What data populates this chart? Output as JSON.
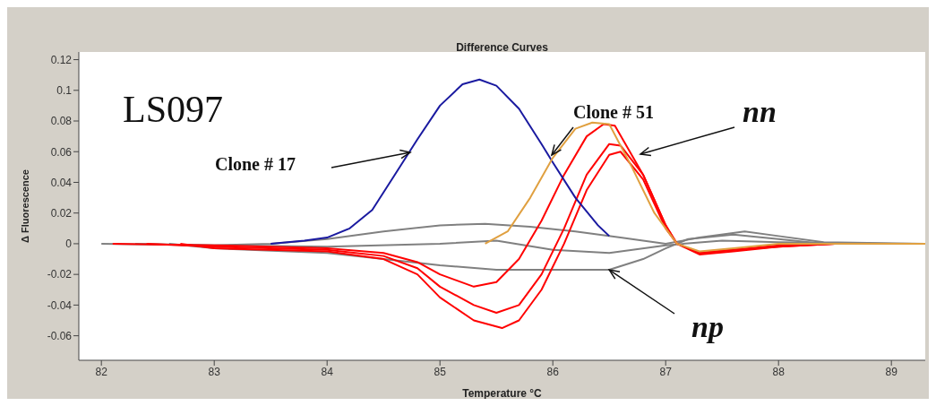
{
  "chart_data": {
    "type": "line",
    "title": "Difference Curves",
    "xlabel": "Temperature °C",
    "ylabel": "Δ Fluorescence",
    "xlim": [
      81.8,
      89.3
    ],
    "xticks": [
      82,
      83,
      84,
      85,
      86,
      87,
      88,
      89
    ],
    "ylim": [
      -0.076,
      0.125
    ],
    "yticks": [
      -0.06,
      -0.04,
      -0.02,
      0,
      0.02,
      0.04,
      0.06,
      0.08,
      0.1,
      0.12
    ],
    "grid": false,
    "legend": false,
    "marker": "none",
    "line_style": "solid",
    "series": [
      {
        "color": "#808080",
        "x": [
          82,
          83,
          83.5,
          84,
          84.5,
          85,
          85.4,
          85.8,
          86.2,
          86.6,
          87,
          87.3,
          87.7,
          88,
          88.4,
          89.3
        ],
        "values": [
          0,
          -0.001,
          0,
          0.003,
          0.008,
          0.012,
          0.013,
          0.011,
          0.008,
          0.004,
          0,
          0.004,
          0.008,
          0.005,
          0.001,
          0
        ]
      },
      {
        "color": "#808080",
        "x": [
          82.3,
          83,
          84,
          85,
          85.5,
          86,
          86.5,
          87,
          87.5,
          88,
          89
        ],
        "values": [
          0,
          -0.001,
          -0.002,
          0,
          0.002,
          -0.004,
          -0.006,
          -0.001,
          0.002,
          0.001,
          0
        ]
      },
      {
        "color": "#808080",
        "x": [
          82.6,
          83,
          84,
          84.5,
          85,
          85.5,
          86,
          86.5,
          86.8,
          87,
          87.2,
          87.6,
          88,
          88.4,
          88.7
        ],
        "values": [
          0,
          -0.003,
          -0.006,
          -0.01,
          -0.014,
          -0.017,
          -0.017,
          -0.017,
          -0.01,
          -0.003,
          0.003,
          0.006,
          0.003,
          0,
          0
        ]
      },
      {
        "color": "#ff0000",
        "x": [
          82.1,
          83,
          84,
          84.5,
          84.8,
          85,
          85.3,
          85.5,
          85.7,
          85.9,
          86.1,
          86.3,
          86.45,
          86.55,
          86.8,
          87,
          87.1,
          87.3,
          87.6,
          88,
          88.5,
          89.3
        ],
        "values": [
          0,
          -0.001,
          -0.003,
          -0.006,
          -0.012,
          -0.02,
          -0.028,
          -0.025,
          -0.01,
          0.015,
          0.045,
          0.07,
          0.078,
          0.077,
          0.045,
          0.012,
          0,
          -0.006,
          -0.004,
          -0.001,
          0,
          0
        ]
      },
      {
        "color": "#ff0000",
        "x": [
          82.4,
          83,
          84,
          84.5,
          84.8,
          85,
          85.3,
          85.5,
          85.7,
          85.9,
          86.1,
          86.3,
          86.5,
          86.6,
          86.8,
          87,
          87.1,
          87.3,
          87.6,
          88,
          88.5,
          89.3
        ],
        "values": [
          0,
          -0.002,
          -0.004,
          -0.008,
          -0.016,
          -0.028,
          -0.04,
          -0.045,
          -0.04,
          -0.02,
          0.01,
          0.045,
          0.065,
          0.064,
          0.045,
          0.012,
          0,
          -0.007,
          -0.005,
          -0.002,
          0,
          0
        ]
      },
      {
        "color": "#ff0000",
        "x": [
          82.7,
          83,
          84,
          84.5,
          84.8,
          85,
          85.3,
          85.55,
          85.7,
          85.9,
          86.1,
          86.3,
          86.5,
          86.6,
          86.8,
          87,
          87.1,
          87.3,
          87.6,
          88,
          88.5,
          89.3
        ],
        "values": [
          0,
          -0.003,
          -0.005,
          -0.01,
          -0.02,
          -0.035,
          -0.05,
          -0.055,
          -0.05,
          -0.03,
          0,
          0.035,
          0.058,
          0.06,
          0.042,
          0.01,
          0,
          -0.006,
          -0.004,
          -0.002,
          0,
          0
        ]
      },
      {
        "color": "#1a1aa0",
        "x": [
          83.5,
          83.8,
          84,
          84.2,
          84.4,
          84.6,
          84.8,
          85,
          85.2,
          85.35,
          85.5,
          85.7,
          85.9,
          86,
          86.2,
          86.4,
          86.5
        ],
        "values": [
          0,
          0.002,
          0.004,
          0.01,
          0.022,
          0.045,
          0.068,
          0.09,
          0.104,
          0.107,
          0.103,
          0.088,
          0.065,
          0.053,
          0.03,
          0.012,
          0.005
        ]
      },
      {
        "color": "#e0a040",
        "x": [
          85.4,
          85.6,
          85.8,
          86,
          86.2,
          86.35,
          86.5,
          86.7,
          86.9,
          87.1,
          87.3,
          87.6,
          88,
          89.3
        ],
        "values": [
          0,
          0.008,
          0.03,
          0.056,
          0.075,
          0.079,
          0.078,
          0.05,
          0.02,
          0,
          -0.005,
          -0.003,
          0,
          0
        ]
      }
    ],
    "annotations": [
      "LS097",
      "Clone # 17",
      "Clone # 51",
      "nn",
      {
        "text": "np",
        "x": 86.5,
        "y": -0.017
      }
    ]
  }
}
